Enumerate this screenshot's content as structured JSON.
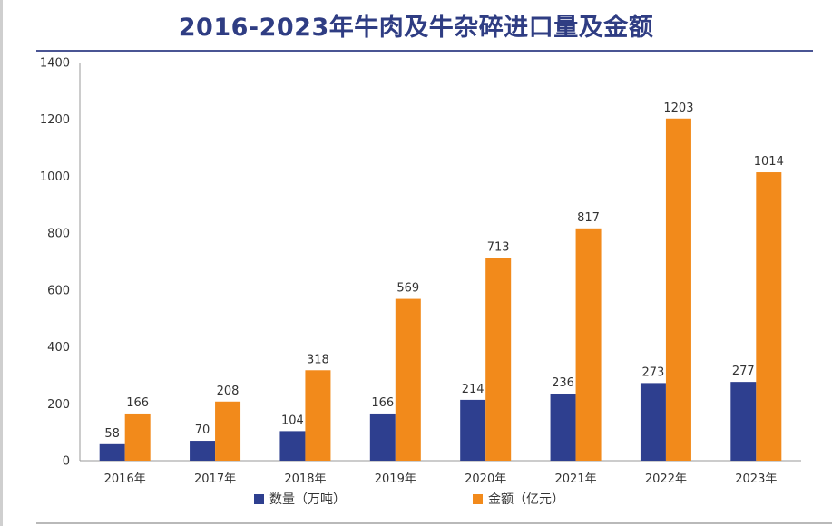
{
  "chart_data": {
    "type": "bar",
    "title": "2016-2023年牛肉及牛杂碎进口量及金额",
    "categories": [
      "2016年",
      "2017年",
      "2018年",
      "2019年",
      "2020年",
      "2021年",
      "2022年",
      "2023年"
    ],
    "series": [
      {
        "name": "数量（万吨）",
        "values": [
          58,
          70,
          104,
          166,
          214,
          236,
          273,
          277
        ],
        "color": "#2e3f8f"
      },
      {
        "name": "金额（亿元）",
        "values": [
          166,
          208,
          318,
          569,
          713,
          817,
          1203,
          1014
        ],
        "color": "#f28a1b"
      }
    ],
    "ylim": [
      0,
      1400
    ],
    "yticks": [
      0,
      200,
      400,
      600,
      800,
      1000,
      1200,
      1400
    ],
    "xlabel": "",
    "ylabel": "",
    "legend_position": "bottom"
  }
}
